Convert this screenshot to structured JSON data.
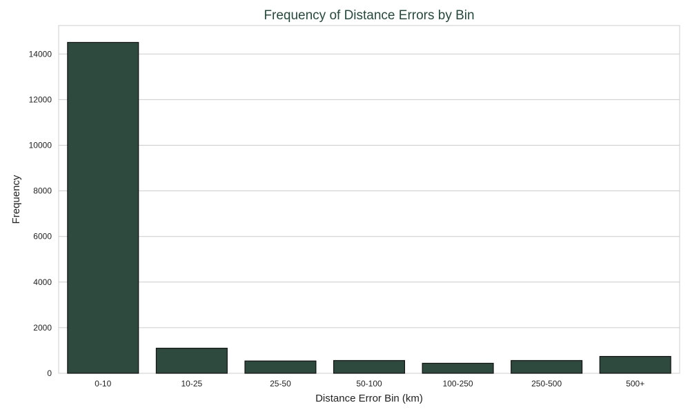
{
  "colors": {
    "bar_fill": "#2e4a3e",
    "bar_edge": "#111111",
    "title": "#254a3c",
    "grid": "#cccccc",
    "frame": "#cccccc"
  },
  "chart_data": {
    "type": "bar",
    "title": "Frequency of Distance Errors by Bin",
    "xlabel": "Distance Error Bin (km)",
    "ylabel": "Frequency",
    "categories": [
      "0-10",
      "10-25",
      "25-50",
      "50-100",
      "100-250",
      "250-500",
      "500+"
    ],
    "values": [
      14510,
      1100,
      540,
      560,
      440,
      560,
      740
    ],
    "ylim": [
      0,
      15250
    ],
    "yticks": [
      0,
      2000,
      4000,
      6000,
      8000,
      10000,
      12000,
      14000
    ],
    "grid": true,
    "grid_axis": "y"
  }
}
